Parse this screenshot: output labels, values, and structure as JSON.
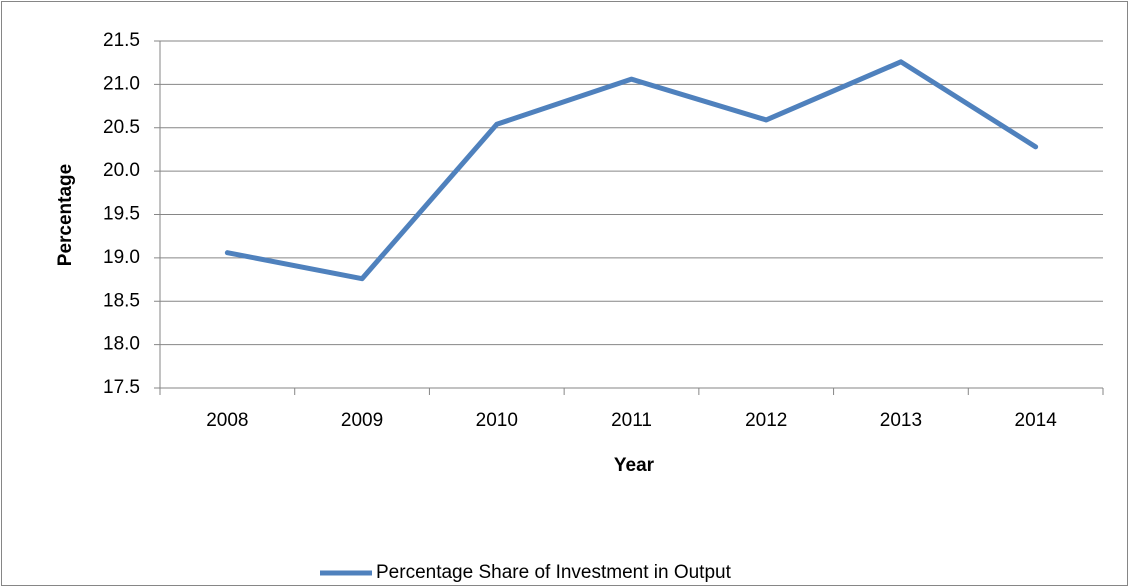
{
  "chart_data": {
    "type": "line",
    "x_label": "Year",
    "y_label": "Percentage",
    "categories": [
      "2008",
      "2009",
      "2010",
      "2011",
      "2012",
      "2013",
      "2014"
    ],
    "series": [
      {
        "name": "Percentage Share of Investment in Output",
        "color": "#4f81bd",
        "values": [
          19.06,
          18.76,
          20.54,
          21.06,
          20.59,
          21.26,
          20.28
        ]
      }
    ],
    "ylim": [
      17.5,
      21.5
    ],
    "yticks": [
      17.5,
      {
        "value": 18,
        "label": "18.0"
      },
      18.5,
      {
        "value": 19,
        "label": "19.0"
      },
      19.5,
      {
        "value": 20,
        "label": "20.0"
      },
      20.5,
      {
        "value": 21,
        "label": "21.0"
      },
      21.5
    ],
    "grid": true,
    "legend": "bottom"
  }
}
